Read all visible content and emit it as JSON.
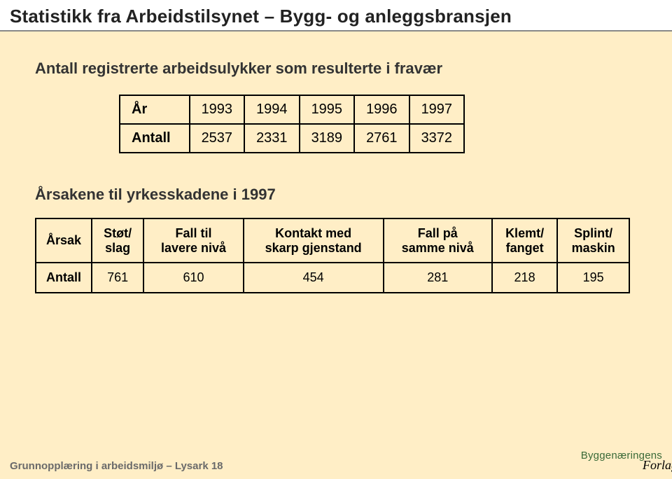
{
  "header": {
    "title": "Statistikk fra Arbeidstilsynet – Bygg- og anleggsbransjen"
  },
  "section1": {
    "subtitle": "Antall registrerte arbeidsulykker som resulterte i fravær",
    "table": {
      "type": "table",
      "border_color": "#000000",
      "border_width": 2,
      "font_size": 20,
      "rows": [
        {
          "label": "År",
          "values": [
            "1993",
            "1994",
            "1995",
            "1996",
            "1997"
          ]
        },
        {
          "label": "Antall",
          "values": [
            "2537",
            "2331",
            "3189",
            "2761",
            "3372"
          ]
        }
      ]
    }
  },
  "section2": {
    "subtitle": "Årsakene til yrkesskadene i 1997",
    "table": {
      "type": "table",
      "border_color": "#000000",
      "border_width": 2,
      "header_label": "Årsak",
      "headers": [
        "Støt/\nslag",
        "Fall til\nlavere nivå",
        "Kontakt med\nskarp gjenstand",
        "Fall på\nsamme nivå",
        "Klemt/\nfanget",
        "Splint/\nmaskin"
      ],
      "row_label": "Antall",
      "values": [
        "761",
        "610",
        "454",
        "281",
        "218",
        "195"
      ]
    }
  },
  "footer": {
    "left": "Grunnopplæring i arbeidsmiljø – Lysark 18",
    "brand_top": "Byggenæringens",
    "brand_bottom": "Forlag"
  },
  "colors": {
    "page_bg": "#ffeec6",
    "topbar_bg": "#ffffff",
    "topbar_border": "#888888",
    "text": "#222222",
    "footer_text": "#6a6a6a",
    "brand_green": "#3a6a38"
  }
}
